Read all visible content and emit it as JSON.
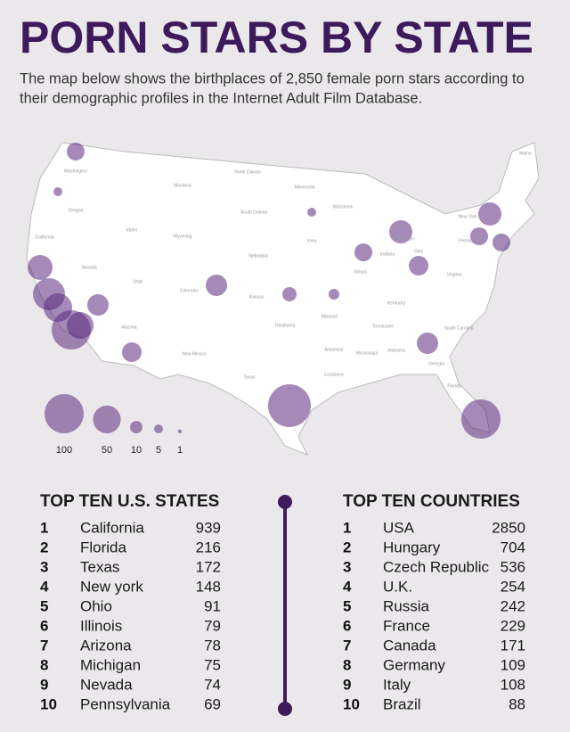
{
  "header": {
    "title": "PORN STARS BY STATE",
    "subtitle_lines": [
      "The map below shows the birthplaces of 2,850 female porn stars according to",
      "their demographic profiles in the Internet Adult Film Database."
    ]
  },
  "map": {
    "labels": [
      "Washington",
      "Montana",
      "North Dakota",
      "Minnesota",
      "Oregon",
      "Idaho",
      "South Dakota",
      "Wisconsin",
      "Wyoming",
      "California",
      "Nevada",
      "Nebraska",
      "Iowa",
      "Illinois",
      "Indiana",
      "Ohio",
      "Michigan",
      "New York",
      "Pennsylvania",
      "Utah",
      "Colorado",
      "Kansas",
      "Missouri",
      "Kentucky",
      "Virginia",
      "Arizona",
      "New Mexico",
      "Oklahoma",
      "Arkansas",
      "Tennessee",
      "Texas",
      "Louisiana",
      "Mississippi",
      "Alabama",
      "Georgia",
      "South Carolina",
      "Florida",
      "Maine"
    ],
    "legend": [
      100,
      50,
      10,
      5,
      1
    ]
  },
  "states_table": {
    "title": "TOP TEN U.S. STATES",
    "rows": [
      [
        1,
        "California",
        939
      ],
      [
        2,
        "Florida",
        216
      ],
      [
        3,
        "Texas",
        172
      ],
      [
        4,
        "New york",
        148
      ],
      [
        5,
        "Ohio",
        91
      ],
      [
        6,
        "Illinois",
        79
      ],
      [
        7,
        "Arizona",
        78
      ],
      [
        8,
        "Michigan",
        75
      ],
      [
        9,
        "Nevada",
        74
      ],
      [
        10,
        "Pennsylvania",
        69
      ]
    ]
  },
  "countries_table": {
    "title": "TOP TEN COUNTRIES",
    "rows": [
      [
        1,
        "USA",
        2850
      ],
      [
        2,
        "Hungary",
        704
      ],
      [
        3,
        "Czech Republic",
        536
      ],
      [
        4,
        "U.K.",
        254
      ],
      [
        5,
        "Russia",
        242
      ],
      [
        6,
        "France",
        229
      ],
      [
        7,
        "Canada",
        171
      ],
      [
        8,
        "Germany",
        109
      ],
      [
        9,
        "Italy",
        108
      ],
      [
        10,
        "Brazil",
        88
      ]
    ]
  }
}
